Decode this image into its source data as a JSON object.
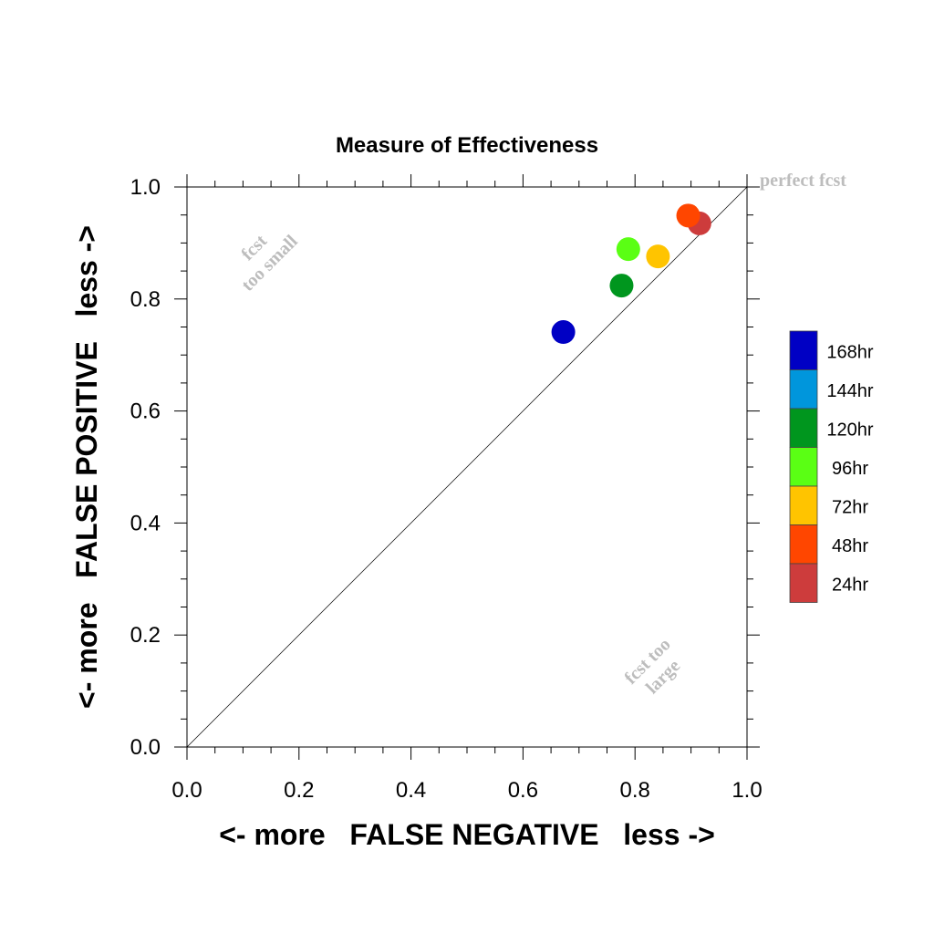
{
  "chart_data": {
    "type": "scatter",
    "title": "Measure of Effectiveness",
    "xlabel": "<- more   FALSE NEGATIVE   less ->",
    "ylabel": "<- more   FALSE POSITIVE   less ->",
    "xlim": [
      0,
      1
    ],
    "ylim": [
      0,
      1
    ],
    "x_ticks": [
      "0.0",
      "0.2",
      "0.4",
      "0.6",
      "0.8",
      "1.0"
    ],
    "y_ticks": [
      "0.0",
      "0.2",
      "0.4",
      "0.6",
      "0.8",
      "1.0"
    ],
    "grid": false,
    "diagonal_reference_line": true,
    "annotations": {
      "perfect": "perfect fcst",
      "small_1": "fcst",
      "small_2": "too small",
      "large_1": "fcst too",
      "large_2": "large"
    },
    "legend_placement": "right",
    "legend": [
      {
        "label": "168hr",
        "color": "#0000c4"
      },
      {
        "label": "144hr",
        "color": "#0096dc"
      },
      {
        "label": "120hr",
        "color": "#00961e"
      },
      {
        "label": "96hr",
        "color": "#5aff14"
      },
      {
        "label": "72hr",
        "color": "#ffc400"
      },
      {
        "label": "48hr",
        "color": "#ff4600"
      },
      {
        "label": "24hr",
        "color": "#cd3c3c"
      }
    ],
    "points": [
      {
        "label": "168hr",
        "x": 0.672,
        "y": 0.741,
        "color": "#0000c4"
      },
      {
        "label": "120hr",
        "x": 0.776,
        "y": 0.824,
        "color": "#00961e"
      },
      {
        "label": "96hr",
        "x": 0.788,
        "y": 0.889,
        "color": "#5aff14"
      },
      {
        "label": "72hr",
        "x": 0.841,
        "y": 0.876,
        "color": "#ffc400"
      },
      {
        "label": "24hr",
        "x": 0.915,
        "y": 0.935,
        "color": "#cd3c3c"
      },
      {
        "label": "48hr",
        "x": 0.895,
        "y": 0.949,
        "color": "#ff4600"
      }
    ]
  }
}
